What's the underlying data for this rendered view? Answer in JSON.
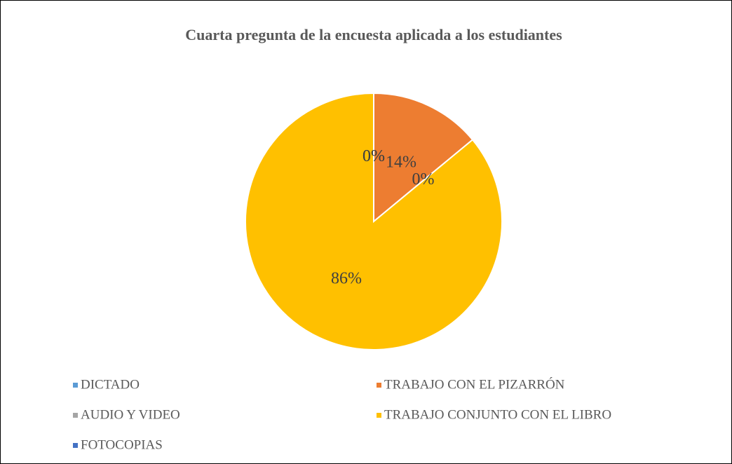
{
  "chart_data": {
    "type": "pie",
    "title": "Cuarta pregunta de la encuesta aplicada a los estudiantes",
    "categories": [
      "DICTADO",
      "TRABAJO CON EL PIZARRÓN",
      "AUDIO Y VIDEO",
      "TRABAJO CONJUNTO CON EL LIBRO",
      "FOTOCOPIAS"
    ],
    "values": [
      0,
      14,
      0,
      86,
      0
    ],
    "value_labels": [
      "0%",
      "14%",
      "0%",
      "86%",
      "0%"
    ],
    "colors": [
      "#5b9bd5",
      "#ed7d31",
      "#a5a5a5",
      "#ffc000",
      "#4472c4"
    ],
    "legend": "bottom"
  }
}
